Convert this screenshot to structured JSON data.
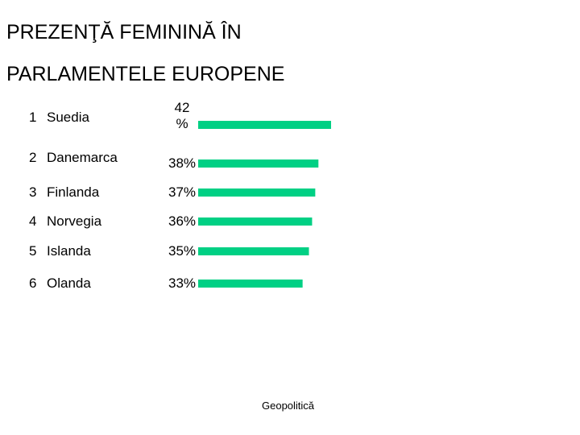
{
  "chart_data": {
    "type": "bar",
    "orientation": "horizontal",
    "title_lines": [
      "PREZENŢĂ FEMININĂ ÎN",
      "PARLAMENTELE EUROPENE"
    ],
    "categories": [
      "Suedia",
      "Danemarca",
      "Finlanda",
      "Norvegia",
      "Islanda",
      "Olanda"
    ],
    "ranks": [
      "1",
      "2",
      "3",
      "4",
      "5",
      "6"
    ],
    "values": [
      42,
      38,
      37,
      36,
      35,
      33
    ],
    "value_labels": [
      "42 %",
      "38%",
      "37%",
      "36%",
      "35%",
      "33%"
    ],
    "unit": "%",
    "bar_color": "#00d084",
    "grid": false,
    "legend": "none"
  },
  "footer": "Geopolitică"
}
